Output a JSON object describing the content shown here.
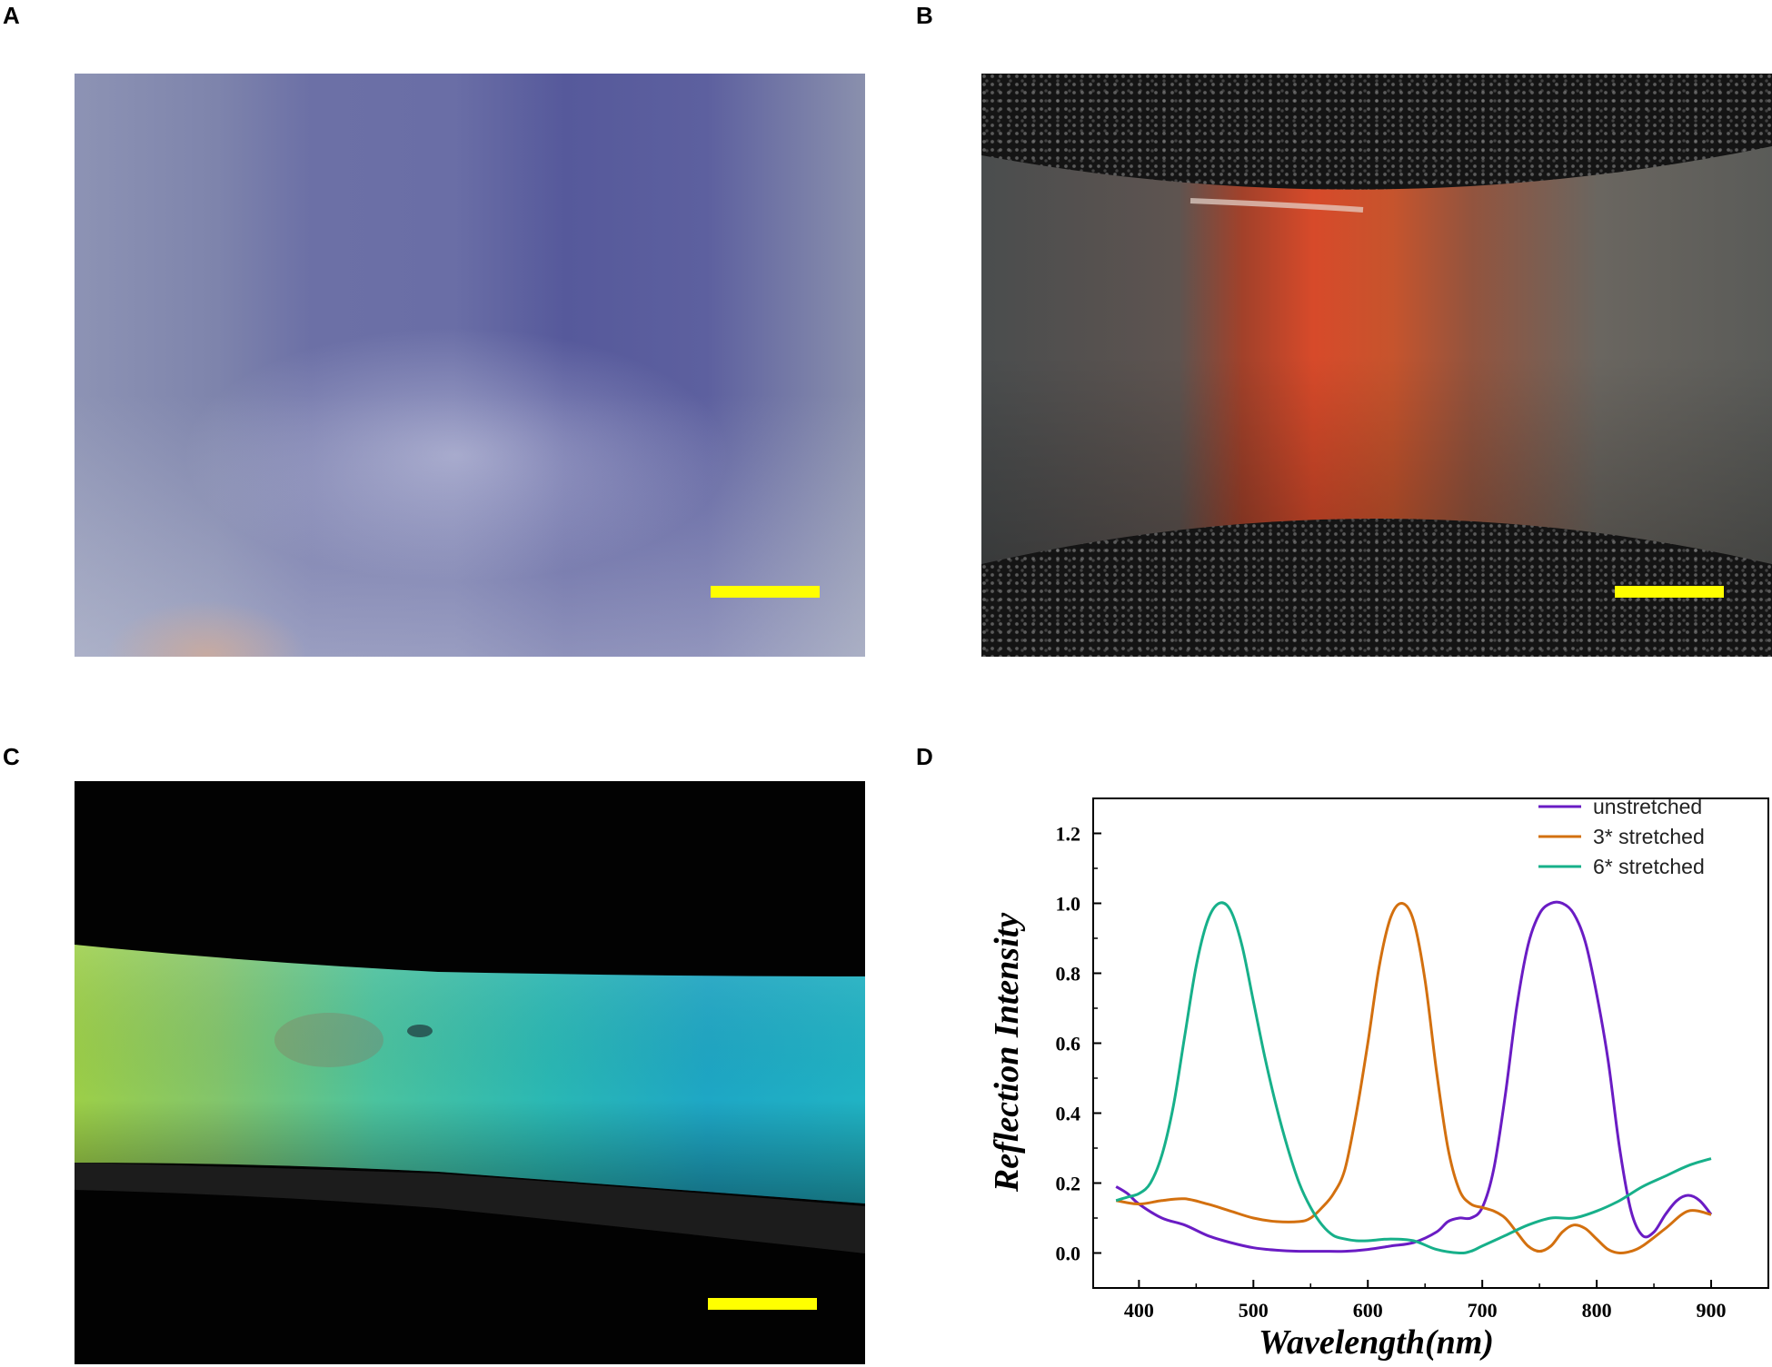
{
  "panels": {
    "a": {
      "label": "A"
    },
    "b": {
      "label": "B"
    },
    "c": {
      "label": "C"
    },
    "d": {
      "label": "D"
    }
  },
  "colors": {
    "scale_bar": "#ffff00",
    "unstretched": "#6a1cc4",
    "stretched_3": "#d3700f",
    "stretched_6": "#17b08a"
  },
  "chart_data": {
    "type": "line",
    "xlabel": "Wavelength(nm)",
    "ylabel": "Reflection Intensity",
    "xlim": [
      360,
      950
    ],
    "ylim": [
      -0.1,
      1.3
    ],
    "xticks": [
      400,
      500,
      600,
      700,
      800,
      900
    ],
    "yticks": [
      0.0,
      0.2,
      0.4,
      0.6,
      0.8,
      1.0,
      1.2
    ],
    "xtick_labels": [
      "400",
      "500",
      "600",
      "700",
      "800",
      "900"
    ],
    "ytick_labels": [
      "0.0",
      "0.2",
      "0.4",
      "0.6",
      "0.8",
      "1.0",
      "1.2"
    ],
    "legend_position": "top-right",
    "series": [
      {
        "name": "unstretched",
        "color": "#6a1cc4",
        "x": [
          380,
          390,
          400,
          420,
          440,
          460,
          480,
          500,
          520,
          540,
          560,
          580,
          600,
          620,
          640,
          660,
          670,
          680,
          690,
          700,
          710,
          720,
          730,
          740,
          750,
          760,
          770,
          780,
          790,
          800,
          810,
          820,
          830,
          840,
          850,
          860,
          870,
          880,
          890,
          900
        ],
        "y": [
          0.19,
          0.17,
          0.14,
          0.1,
          0.08,
          0.05,
          0.03,
          0.015,
          0.008,
          0.005,
          0.005,
          0.005,
          0.01,
          0.02,
          0.03,
          0.06,
          0.09,
          0.1,
          0.1,
          0.13,
          0.24,
          0.45,
          0.7,
          0.88,
          0.97,
          1.0,
          1.0,
          0.97,
          0.89,
          0.74,
          0.55,
          0.3,
          0.12,
          0.05,
          0.06,
          0.11,
          0.15,
          0.165,
          0.15,
          0.11
        ]
      },
      {
        "name": "3* stretched",
        "color": "#d3700f",
        "x": [
          380,
          400,
          420,
          440,
          460,
          480,
          500,
          520,
          540,
          550,
          560,
          570,
          580,
          590,
          600,
          610,
          620,
          630,
          640,
          650,
          660,
          670,
          680,
          690,
          700,
          710,
          720,
          730,
          740,
          750,
          760,
          770,
          780,
          790,
          800,
          810,
          820,
          830,
          840,
          860,
          880,
          900
        ],
        "y": [
          0.15,
          0.14,
          0.15,
          0.155,
          0.14,
          0.12,
          0.1,
          0.09,
          0.09,
          0.1,
          0.13,
          0.17,
          0.24,
          0.4,
          0.6,
          0.82,
          0.96,
          1.0,
          0.95,
          0.78,
          0.52,
          0.3,
          0.18,
          0.14,
          0.13,
          0.12,
          0.1,
          0.06,
          0.02,
          0.005,
          0.02,
          0.06,
          0.08,
          0.07,
          0.04,
          0.01,
          0.0,
          0.005,
          0.02,
          0.07,
          0.12,
          0.11
        ]
      },
      {
        "name": "6* stretched",
        "color": "#17b08a",
        "x": [
          380,
          390,
          400,
          410,
          420,
          430,
          440,
          450,
          460,
          470,
          480,
          490,
          500,
          510,
          520,
          530,
          540,
          550,
          560,
          570,
          580,
          590,
          600,
          620,
          640,
          660,
          680,
          690,
          700,
          720,
          740,
          760,
          780,
          800,
          820,
          840,
          860,
          880,
          900
        ],
        "y": [
          0.15,
          0.16,
          0.17,
          0.2,
          0.28,
          0.42,
          0.62,
          0.82,
          0.95,
          1.0,
          0.98,
          0.88,
          0.72,
          0.56,
          0.42,
          0.3,
          0.2,
          0.13,
          0.08,
          0.05,
          0.04,
          0.035,
          0.035,
          0.04,
          0.035,
          0.01,
          0.0,
          0.005,
          0.02,
          0.05,
          0.08,
          0.1,
          0.1,
          0.12,
          0.15,
          0.19,
          0.22,
          0.25,
          0.27
        ]
      }
    ]
  }
}
